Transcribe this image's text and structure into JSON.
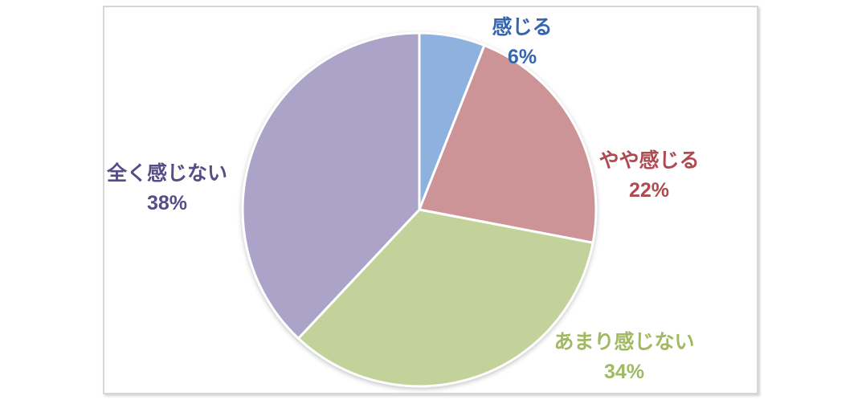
{
  "chart_data": {
    "type": "pie",
    "title": "",
    "categories": [
      "感じる",
      "やや感じる",
      "あまり感じない",
      "全く感じない"
    ],
    "values": [
      6,
      22,
      34,
      38
    ],
    "slices": [
      {
        "id": "kanjiru",
        "label": "感じる",
        "value": 6,
        "percent_label": "6%",
        "color": "#8FB1E0",
        "label_color": "#3365B0"
      },
      {
        "id": "yaya-kanjiru",
        "label": "やや感じる",
        "value": 22,
        "percent_label": "22%",
        "color": "#CC9497",
        "label_color": "#AF4A50"
      },
      {
        "id": "amari-kanjinai",
        "label": "あまり感じない",
        "value": 34,
        "percent_label": "34%",
        "color": "#C3D19A",
        "label_color": "#A1B961"
      },
      {
        "id": "mattaku-kanjinai",
        "label": "全く感じない",
        "value": 38,
        "percent_label": "38%",
        "color": "#ACA3C8",
        "label_color": "#574C85"
      }
    ],
    "start_angle_deg": 0,
    "direction": "clockwise",
    "legend_position": "none",
    "labels_outside": true,
    "slice_border_color": "#FFFFFF",
    "frame_border_color": "#D7D7D7",
    "background_color": "#FFFFFF"
  }
}
